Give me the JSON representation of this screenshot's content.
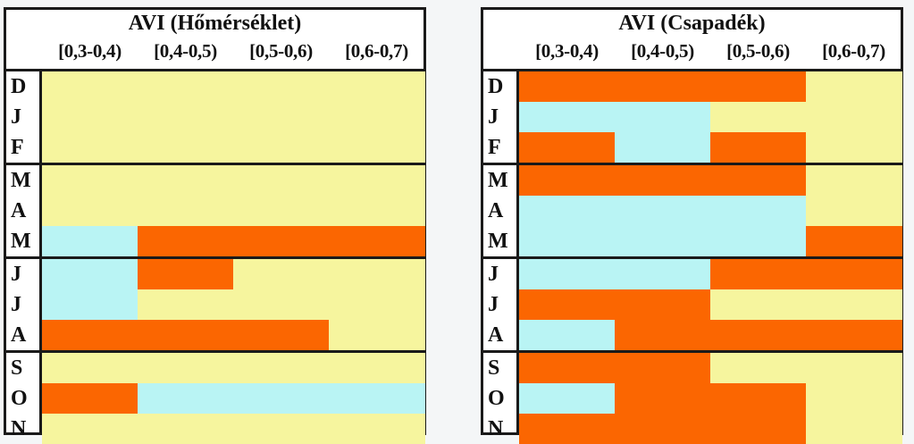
{
  "colors": {
    "low": "#b9f4f4",
    "mid": "#f6f59e",
    "high": "#fb6601",
    "border": "#1a1a1a"
  },
  "chart_data": [
    {
      "type": "heatmap",
      "title": "AVI (Hőmérséklet)",
      "columns": [
        "[0,3-0,4)",
        "[0,4-0,5)",
        "[0,5-0,6)",
        "[0,6-0,7)"
      ],
      "rows": [
        "D",
        "J",
        "F",
        "M",
        "A",
        "M",
        "J",
        "J",
        "A",
        "S",
        "O",
        "N"
      ],
      "groups": [
        3,
        3,
        3,
        3
      ],
      "cells": [
        [
          "mid",
          "mid",
          "mid",
          "mid"
        ],
        [
          "mid",
          "mid",
          "mid",
          "mid"
        ],
        [
          "mid",
          "mid",
          "mid",
          "mid"
        ],
        [
          "mid",
          "mid",
          "mid",
          "mid"
        ],
        [
          "mid",
          "mid",
          "mid",
          "mid"
        ],
        [
          "low",
          "high",
          "high",
          "high"
        ],
        [
          "low",
          "high",
          "mid",
          "mid"
        ],
        [
          "low",
          "mid",
          "mid",
          "mid"
        ],
        [
          "high",
          "high",
          "high",
          "mid"
        ],
        [
          "mid",
          "mid",
          "mid",
          "mid"
        ],
        [
          "high",
          "low",
          "low",
          "low"
        ],
        [
          "mid",
          "mid",
          "mid",
          "mid"
        ]
      ]
    },
    {
      "type": "heatmap",
      "title": "AVI (Csapadék)",
      "columns": [
        "[0,3-0,4)",
        "[0,4-0,5)",
        "[0,5-0,6)",
        "[0,6-0,7)"
      ],
      "rows": [
        "D",
        "J",
        "F",
        "M",
        "A",
        "M",
        "J",
        "J",
        "A",
        "S",
        "O",
        "N"
      ],
      "groups": [
        3,
        3,
        3,
        3
      ],
      "cells": [
        [
          "high",
          "high",
          "high",
          "mid"
        ],
        [
          "low",
          "low",
          "mid",
          "mid"
        ],
        [
          "high",
          "low",
          "high",
          "mid"
        ],
        [
          "high",
          "high",
          "high",
          "mid"
        ],
        [
          "low",
          "low",
          "low",
          "mid"
        ],
        [
          "low",
          "low",
          "low",
          "high"
        ],
        [
          "low",
          "low",
          "high",
          "high"
        ],
        [
          "high",
          "high",
          "mid",
          "mid"
        ],
        [
          "low",
          "high",
          "high",
          "high"
        ],
        [
          "high",
          "high",
          "mid",
          "mid"
        ],
        [
          "low",
          "high",
          "high",
          "mid"
        ],
        [
          "high",
          "high",
          "high",
          "mid"
        ]
      ]
    }
  ]
}
